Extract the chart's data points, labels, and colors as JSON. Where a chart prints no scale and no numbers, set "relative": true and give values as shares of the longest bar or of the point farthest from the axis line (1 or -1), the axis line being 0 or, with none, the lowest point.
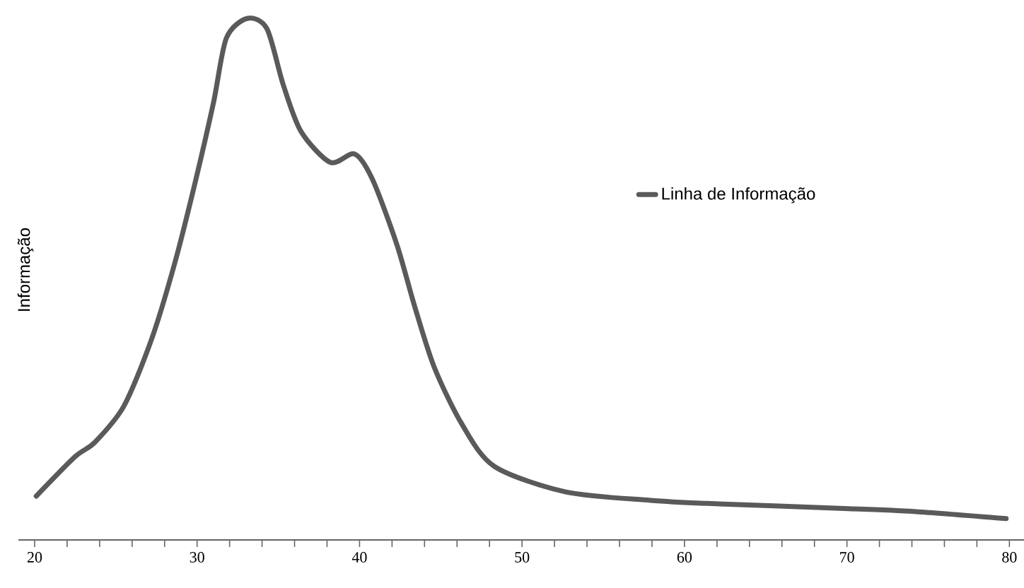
{
  "chart_data": {
    "type": "line",
    "relative": true,
    "ylabel": "Informação",
    "legend": "right",
    "marker": "none",
    "line_style": "solid",
    "grid": false,
    "xlim": [
      19,
      80.9
    ],
    "xticks": [
      20,
      {
        "value": 22,
        "label": null
      },
      {
        "value": 24,
        "label": null
      },
      {
        "value": 26,
        "label": null
      },
      {
        "value": 28,
        "label": null
      },
      30,
      {
        "value": 32,
        "label": null
      },
      {
        "value": 34,
        "label": null
      },
      {
        "value": 36,
        "label": null
      },
      {
        "value": 38,
        "label": null
      },
      40,
      {
        "value": 42,
        "label": null
      },
      {
        "value": 44,
        "label": null
      },
      {
        "value": 46,
        "label": null
      },
      {
        "value": 48,
        "label": null
      },
      50,
      {
        "value": 52,
        "label": null
      },
      {
        "value": 54,
        "label": null
      },
      {
        "value": 56,
        "label": null
      },
      {
        "value": 58,
        "label": null
      },
      60,
      {
        "value": 62,
        "label": null
      },
      {
        "value": 64,
        "label": null
      },
      {
        "value": 66,
        "label": null
      },
      {
        "value": 68,
        "label": null
      },
      70,
      {
        "value": 72,
        "label": null
      },
      {
        "value": 74,
        "label": null
      },
      {
        "value": 76,
        "label": null
      },
      {
        "value": 78,
        "label": null
      },
      80
    ],
    "series": [
      {
        "name": "Linha de Informação",
        "color": "#5a5a5a",
        "x": [
          20.1,
          22.5,
          23.7,
          25.5,
          27.2,
          28.6,
          29.8,
          31.0,
          31.8,
          33.1,
          34.3,
          35.3,
          36.4,
          38.2,
          39.7,
          40.8,
          42.3,
          43.4,
          44.6,
          46.3,
          48.3,
          52.7,
          57.9,
          61.4,
          70.1,
          74.4,
          79.8
        ],
        "values": [
          0.084,
          0.16,
          0.187,
          0.257,
          0.385,
          0.528,
          0.675,
          0.837,
          0.962,
          1.0,
          0.98,
          0.873,
          0.783,
          0.724,
          0.74,
          0.691,
          0.566,
          0.447,
          0.331,
          0.222,
          0.141,
          0.092,
          0.076,
          0.07,
          0.06,
          0.054,
          0.041
        ]
      }
    ]
  }
}
